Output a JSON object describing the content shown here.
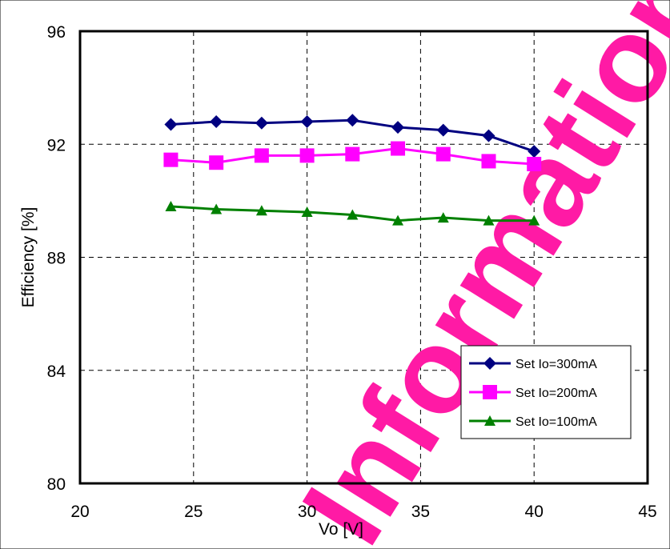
{
  "chart_data": {
    "type": "line",
    "xlabel": "Vo [V]",
    "ylabel": "Efficiency [%]",
    "xlim": [
      20,
      45
    ],
    "ylim": [
      80,
      96
    ],
    "xticks": [
      "20",
      "25",
      "30",
      "35",
      "40",
      "45"
    ],
    "yticks": [
      "80",
      "84",
      "88",
      "92",
      "96"
    ],
    "grid": true,
    "legend_position": "bottom-right",
    "x": [
      24,
      26,
      28,
      30,
      32,
      34,
      36,
      38,
      40
    ],
    "series": [
      {
        "name": "Set Io=300mA",
        "marker": "diamond",
        "color": "#000080",
        "values": [
          92.7,
          92.8,
          92.75,
          92.8,
          92.85,
          92.6,
          92.5,
          92.3,
          91.75
        ]
      },
      {
        "name": "Set Io=200mA",
        "marker": "square",
        "color": "#ff00ff",
        "values": [
          91.45,
          91.35,
          91.6,
          91.6,
          91.65,
          91.85,
          91.65,
          91.4,
          91.3
        ]
      },
      {
        "name": "Set Io=100mA",
        "marker": "triangle",
        "color": "#008000",
        "values": [
          89.8,
          89.7,
          89.65,
          89.6,
          89.5,
          89.3,
          89.4,
          89.3,
          89.3
        ]
      }
    ]
  },
  "watermark": {
    "text": "Information",
    "color": "#ff1aa5"
  }
}
